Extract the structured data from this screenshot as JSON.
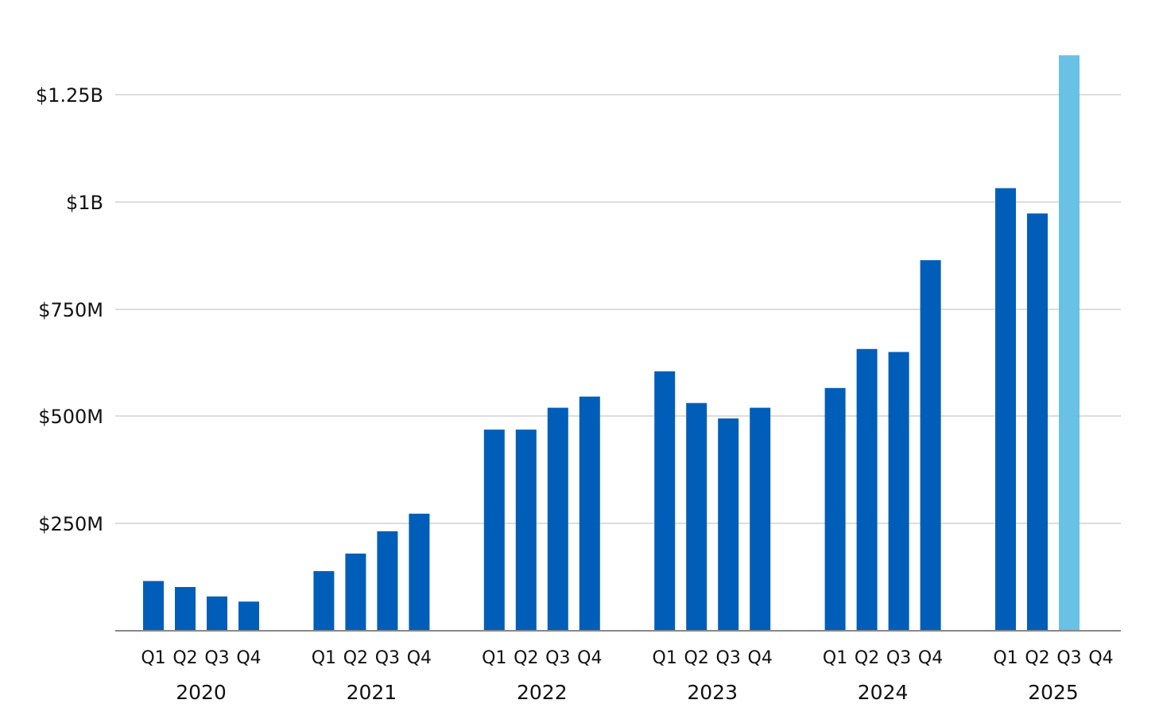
{
  "chart_data": {
    "type": "bar",
    "title": "",
    "xlabel": "",
    "ylabel": "",
    "ylim": [
      0,
      1250000000
    ],
    "yticks": [
      {
        "value": 250000000,
        "label": "$250M"
      },
      {
        "value": 500000000,
        "label": "$500M"
      },
      {
        "value": 750000000,
        "label": "$750M"
      },
      {
        "value": 1000000000,
        "label": "$1B"
      },
      {
        "value": 1250000000,
        "label": "$1.25B"
      }
    ],
    "grid": true,
    "legend": "none",
    "colors": {
      "actual": "#005EB8",
      "highlight": "#6AC1E6",
      "grid": "#DDDDDD",
      "axis": "#888888"
    },
    "groups": [
      {
        "year": "2020",
        "quarters": [
          {
            "label": "Q1",
            "value": 116000000
          },
          {
            "label": "Q2",
            "value": 102000000
          },
          {
            "label": "Q3",
            "value": 80000000
          },
          {
            "label": "Q4",
            "value": 68000000
          }
        ]
      },
      {
        "year": "2021",
        "quarters": [
          {
            "label": "Q1",
            "value": 139000000
          },
          {
            "label": "Q2",
            "value": 180000000
          },
          {
            "label": "Q3",
            "value": 232000000
          },
          {
            "label": "Q4",
            "value": 273000000
          }
        ]
      },
      {
        "year": "2022",
        "quarters": [
          {
            "label": "Q1",
            "value": 469000000
          },
          {
            "label": "Q2",
            "value": 469000000
          },
          {
            "label": "Q3",
            "value": 520000000
          },
          {
            "label": "Q4",
            "value": 546000000
          }
        ]
      },
      {
        "year": "2023",
        "quarters": [
          {
            "label": "Q1",
            "value": 605000000
          },
          {
            "label": "Q2",
            "value": 531000000
          },
          {
            "label": "Q3",
            "value": 495000000
          },
          {
            "label": "Q4",
            "value": 520000000
          }
        ]
      },
      {
        "year": "2024",
        "quarters": [
          {
            "label": "Q1",
            "value": 566000000
          },
          {
            "label": "Q2",
            "value": 657000000
          },
          {
            "label": "Q3",
            "value": 650000000
          },
          {
            "label": "Q4",
            "value": 864000000
          }
        ]
      },
      {
        "year": "2025",
        "quarters": [
          {
            "label": "Q1",
            "value": 1032000000
          },
          {
            "label": "Q2",
            "value": 973000000
          },
          {
            "label": "Q3",
            "value": 1342000000,
            "highlight": true
          },
          {
            "label": "Q4",
            "value": null
          }
        ]
      }
    ]
  }
}
